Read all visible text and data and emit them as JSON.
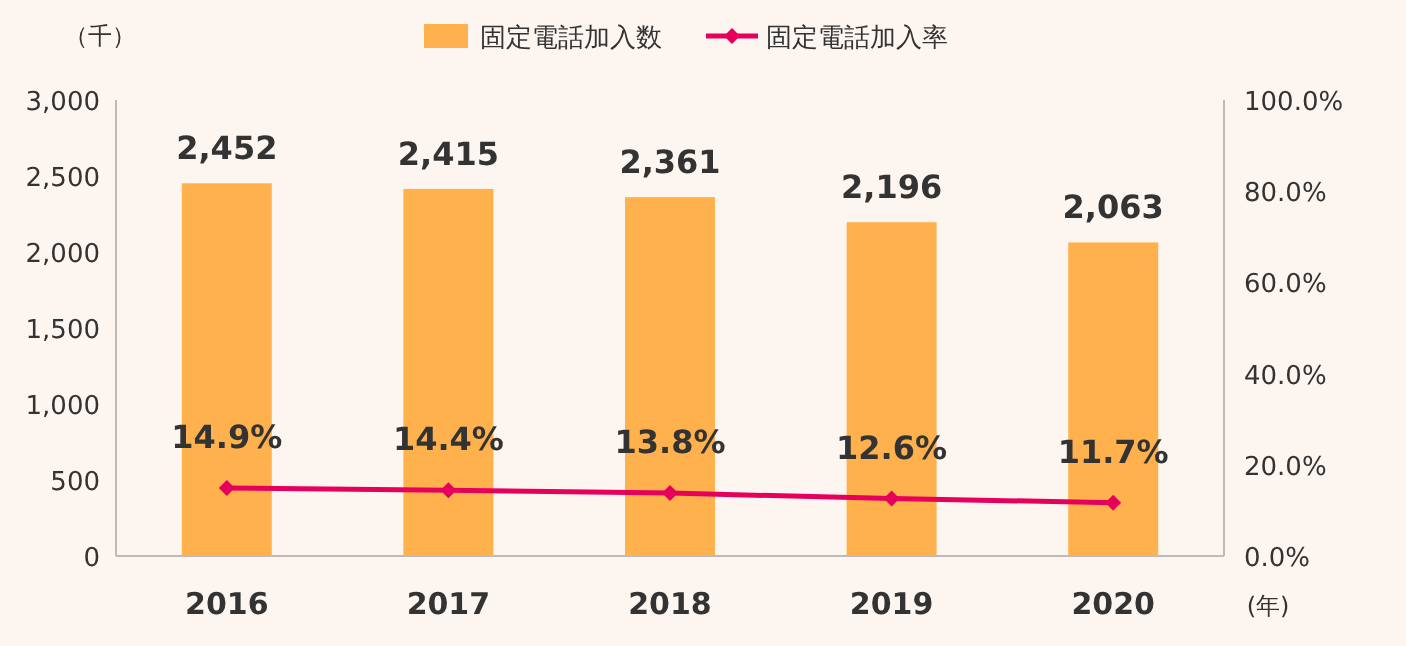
{
  "chart_data": {
    "type": "bar",
    "categories": [
      "2016",
      "2017",
      "2018",
      "2019",
      "2020"
    ],
    "ylabel": "（千）",
    "xlabel": "(年)",
    "ylim": [
      0,
      3000
    ],
    "yticks": [
      0,
      500,
      {
        "value": 1000,
        "label": "1,000"
      },
      {
        "value": 1500,
        "label": "1,500"
      },
      {
        "value": 2000,
        "label": "2,000"
      },
      {
        "value": 2500,
        "label": "2,500"
      },
      {
        "value": 3000,
        "label": "3,000"
      }
    ],
    "y2lim": [
      0,
      100
    ],
    "y2ticks": [
      {
        "value": 0,
        "label": "0.0%"
      },
      {
        "value": 20,
        "label": "20.0%"
      },
      {
        "value": 40,
        "label": "40.0%"
      },
      {
        "value": 60,
        "label": "60.0%"
      },
      {
        "value": 80,
        "label": "80.0%"
      },
      {
        "value": 100,
        "label": "100.0%"
      }
    ],
    "legend": "top",
    "grid": false,
    "series": [
      {
        "name": "固定電話加入数",
        "color": "#ffb14e",
        "values": [
          2452,
          2415,
          2361,
          2196,
          2063
        ],
        "value_labels": [
          "2,452",
          "2,415",
          "2,361",
          "2,196",
          "2,063"
        ]
      },
      {
        "name": "固定電話加入率",
        "type": "line",
        "axis": "y2",
        "color": "#e6005c",
        "marker": "diamond",
        "line_style": "solid",
        "values": [
          14.9,
          14.4,
          13.8,
          12.6,
          11.7
        ],
        "value_labels": [
          "14.9%",
          "14.4%",
          "13.8%",
          "12.6%",
          "11.7%"
        ]
      }
    ]
  }
}
